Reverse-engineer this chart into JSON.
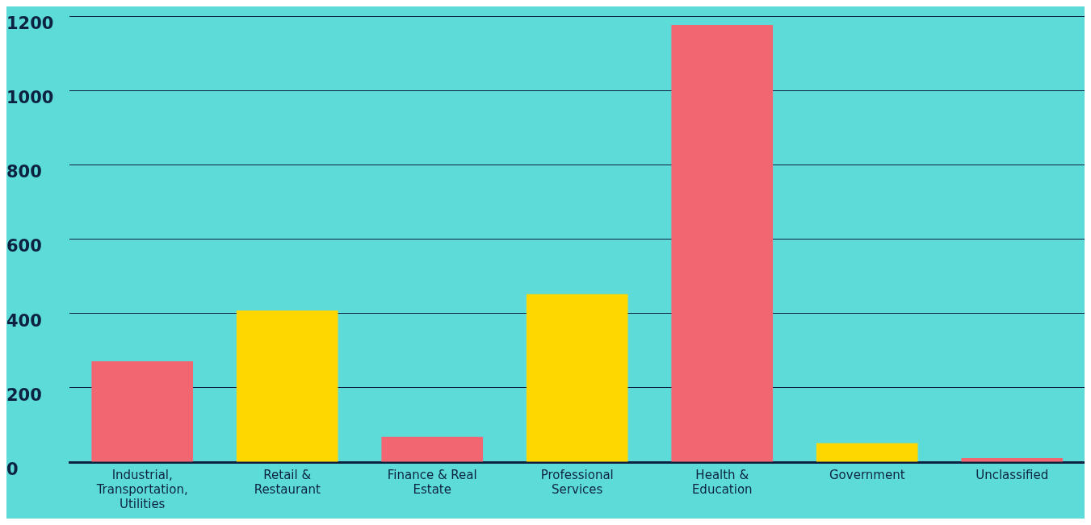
{
  "chart_data": {
    "type": "bar",
    "categories": [
      "Industrial, Transportation, Utilities",
      "Retail & Restaurant",
      "Finance & Real Estate",
      "Professional Services",
      "Health & Education",
      "Government",
      "Unclassified"
    ],
    "values": [
      271,
      408,
      68,
      452,
      1176,
      51,
      11
    ],
    "colors": [
      "#f26671",
      "#fed700",
      "#f26671",
      "#fed700",
      "#f26671",
      "#fed700",
      "#f26671"
    ],
    "ylim": [
      0,
      1200
    ],
    "yticks": [
      0,
      200,
      400,
      600,
      800,
      1000,
      1200
    ],
    "grid": "y",
    "legend": false
  }
}
